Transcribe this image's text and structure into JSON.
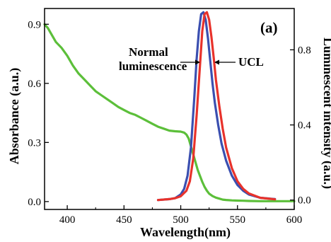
{
  "chart_data": {
    "type": "line",
    "panel_label": "(a)",
    "xlabel": "Wavelength(nm)",
    "ylabel_left": "Absorbance (a.u.)",
    "ylabel_right": "Luminescent intensity (a.u.)",
    "xlim": [
      380,
      600
    ],
    "ylim_left": [
      -0.04,
      0.98
    ],
    "ylim_right": [
      -0.05,
      1.02
    ],
    "x_ticks": [
      "400",
      "450",
      "500",
      "550",
      "600"
    ],
    "y_ticks_left": [
      "0.0",
      "0.3",
      "0.6",
      "0.9"
    ],
    "y_ticks_right": [
      "0.0",
      "0.4",
      "0.8"
    ],
    "grid": false,
    "annotations": [
      {
        "id": "normal",
        "lines": [
          "Normal",
          "luminescence"
        ],
        "points_to": "Normal luminescence"
      },
      {
        "id": "ucl",
        "text": "UCL",
        "points_to": "UCL"
      }
    ],
    "series": [
      {
        "name": "Absorbance",
        "axis": "left",
        "color": "#5cbf3a",
        "x": [
          380,
          383,
          386,
          390,
          395,
          400,
          405,
          410,
          415,
          420,
          425,
          430,
          435,
          440,
          445,
          450,
          455,
          460,
          465,
          470,
          475,
          480,
          485,
          490,
          495,
          500,
          503,
          505,
          507,
          509,
          511,
          513,
          515,
          517,
          519,
          521,
          523,
          525,
          528,
          531,
          534,
          537,
          540,
          545,
          550,
          555,
          560,
          570,
          580,
          590,
          600
        ],
        "y": [
          0.9,
          0.88,
          0.85,
          0.81,
          0.78,
          0.74,
          0.69,
          0.65,
          0.62,
          0.59,
          0.56,
          0.54,
          0.52,
          0.5,
          0.48,
          0.465,
          0.45,
          0.44,
          0.425,
          0.41,
          0.395,
          0.38,
          0.37,
          0.36,
          0.357,
          0.355,
          0.35,
          0.34,
          0.32,
          0.28,
          0.24,
          0.2,
          0.16,
          0.13,
          0.1,
          0.075,
          0.055,
          0.04,
          0.028,
          0.02,
          0.015,
          0.01,
          0.008,
          0.006,
          0.005,
          0.004,
          0.003,
          0.002,
          0.002,
          0.002,
          0.002
        ]
      },
      {
        "name": "Normal luminescence",
        "axis": "right",
        "color": "#3b4fb0",
        "x": [
          480,
          490,
          495,
          500,
          503,
          506,
          509,
          512,
          514,
          516,
          518,
          520,
          522,
          524,
          526,
          528,
          530,
          533,
          536,
          540,
          545,
          550,
          555,
          560,
          570,
          583
        ],
        "y": [
          0.0,
          0.005,
          0.01,
          0.03,
          0.06,
          0.13,
          0.28,
          0.55,
          0.75,
          0.9,
          0.99,
          1.0,
          0.96,
          0.86,
          0.74,
          0.62,
          0.52,
          0.4,
          0.3,
          0.21,
          0.13,
          0.08,
          0.05,
          0.03,
          0.012,
          0.005
        ]
      },
      {
        "name": "UCL",
        "axis": "right",
        "color": "#e8322b",
        "x": [
          480,
          490,
          495,
          500,
          505,
          508,
          511,
          514,
          517,
          519,
          521,
          523,
          525,
          527,
          529,
          531,
          534,
          537,
          540,
          545,
          550,
          555,
          560,
          570,
          583
        ],
        "y": [
          0.0,
          0.005,
          0.01,
          0.02,
          0.05,
          0.1,
          0.22,
          0.45,
          0.72,
          0.9,
          0.99,
          1.0,
          0.96,
          0.87,
          0.76,
          0.64,
          0.5,
          0.38,
          0.28,
          0.17,
          0.1,
          0.06,
          0.035,
          0.012,
          0.004
        ]
      }
    ]
  }
}
